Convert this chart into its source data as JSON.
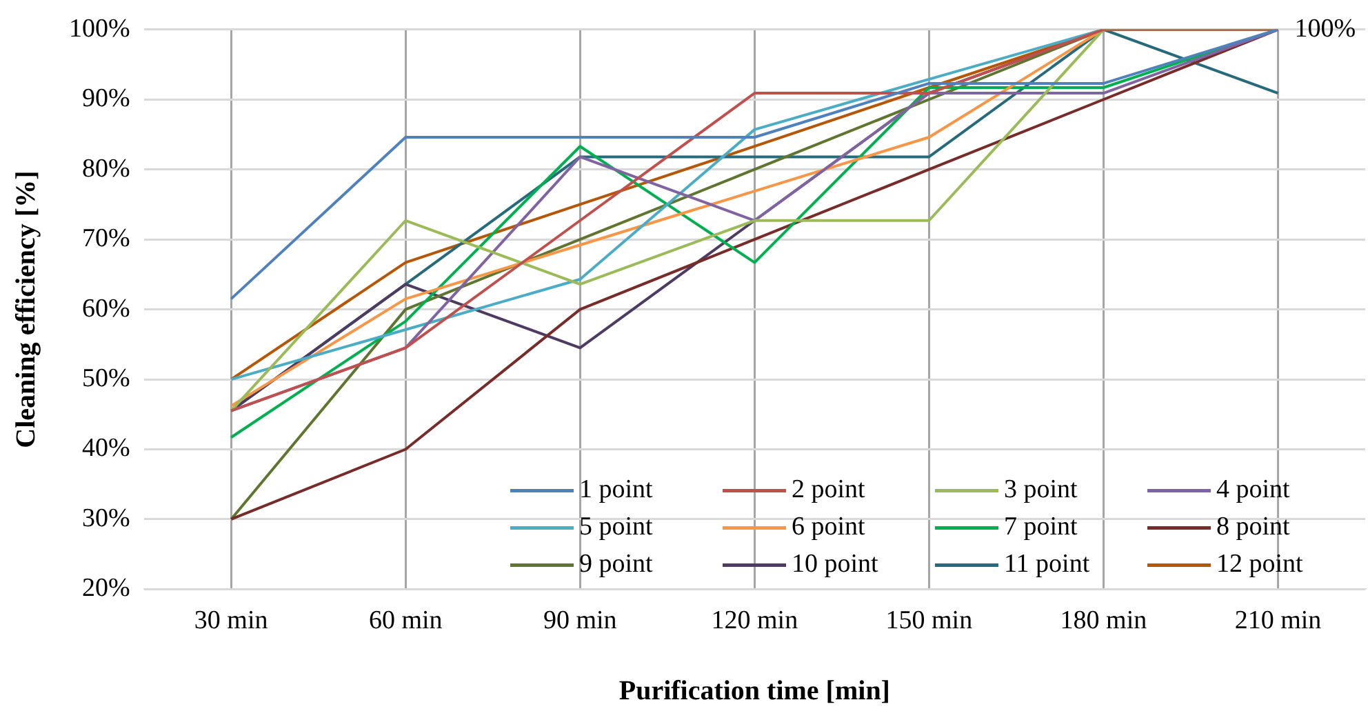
{
  "chart_data": {
    "type": "line",
    "xlabel": "Purification time [min]",
    "ylabel": "Cleaning efficiency [%]",
    "categories": [
      "30 min",
      "60 min",
      "90 min",
      "120 min",
      "150 min",
      "180 min",
      "210 min"
    ],
    "ylim": [
      20,
      100
    ],
    "yticks": [
      {
        "value": 20,
        "label": "20%"
      },
      {
        "value": 30,
        "label": "30%"
      },
      {
        "value": 40,
        "label": "40%"
      },
      {
        "value": 50,
        "label": "50%"
      },
      {
        "value": 60,
        "label": "60%"
      },
      {
        "value": 70,
        "label": "70%"
      },
      {
        "value": 80,
        "label": "80%"
      },
      {
        "value": 90,
        "label": "90%"
      },
      {
        "value": 100,
        "label": "100%"
      }
    ],
    "grid": true,
    "legend": "bottom right",
    "marker": "none",
    "line_style": "solid",
    "annotations": [
      {
        "text": "100%",
        "x": "210 min",
        "y": 100
      }
    ],
    "series": [
      {
        "name": "1 point",
        "color": "#4f81bd",
        "values": [
          61.5,
          84.6,
          84.6,
          84.6,
          92.3,
          92.3,
          100
        ]
      },
      {
        "name": "2 point",
        "color": "#c0504d",
        "values": [
          45.5,
          54.5,
          72.7,
          90.9,
          90.9,
          100,
          100
        ]
      },
      {
        "name": "3 point",
        "color": "#9bbb59",
        "values": [
          45.5,
          72.7,
          63.6,
          72.7,
          72.7,
          100,
          100
        ]
      },
      {
        "name": "4 point",
        "color": "#8064a2",
        "values": [
          45.5,
          54.5,
          81.8,
          72.7,
          90.9,
          90.9,
          100
        ]
      },
      {
        "name": "5 point",
        "color": "#4bacc6",
        "values": [
          50,
          57.1,
          64.3,
          85.7,
          92.9,
          100,
          100
        ]
      },
      {
        "name": "6 point",
        "color": "#f79646",
        "values": [
          46.2,
          61.5,
          69.2,
          76.9,
          84.6,
          100,
          100
        ]
      },
      {
        "name": "7 point",
        "color": "#00b050",
        "values": [
          41.7,
          58.3,
          83.3,
          66.7,
          91.7,
          91.7,
          100
        ]
      },
      {
        "name": "8 point",
        "color": "#772c2a",
        "values": [
          30,
          40,
          60,
          70,
          80,
          90,
          100
        ]
      },
      {
        "name": "9 point",
        "color": "#5f7530",
        "values": [
          30,
          60,
          70,
          80,
          90,
          100,
          100
        ]
      },
      {
        "name": "10 point",
        "color": "#4d3b62",
        "values": [
          45.5,
          63.6,
          54.5,
          72.7,
          90.9,
          100,
          100
        ]
      },
      {
        "name": "11 point",
        "color": "#276a7c",
        "values": [
          45.5,
          63.6,
          81.8,
          81.8,
          81.8,
          100,
          90.9
        ]
      },
      {
        "name": "12 point",
        "color": "#b65708",
        "values": [
          50,
          66.7,
          75,
          83.3,
          91.7,
          100,
          100
        ]
      }
    ]
  }
}
